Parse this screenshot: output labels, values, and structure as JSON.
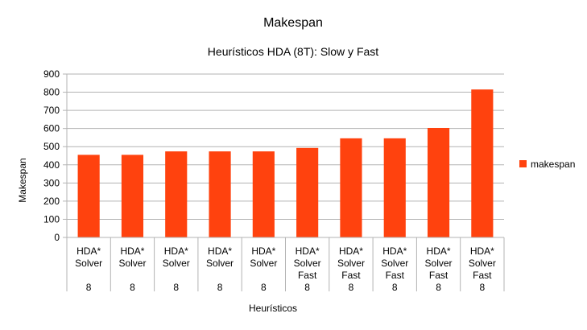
{
  "chart_data": {
    "type": "bar",
    "title": "Makespan",
    "subtitle": "Heurísticos HDA (8T): Slow y Fast",
    "xlabel": "Heurísticos",
    "ylabel": "Makespan",
    "ylim": [
      0,
      900
    ],
    "y_ticks": [
      "0",
      "100",
      "200",
      "300",
      "400",
      "500",
      "600",
      "700",
      "800",
      "900"
    ],
    "grid": true,
    "legend_position": "right",
    "categories": [
      {
        "lines": [
          "HDA*",
          "Solver",
          "",
          "8"
        ]
      },
      {
        "lines": [
          "HDA*",
          "Solver",
          "",
          "8"
        ]
      },
      {
        "lines": [
          "HDA*",
          "Solver",
          "",
          "8"
        ]
      },
      {
        "lines": [
          "HDA*",
          "Solver",
          "",
          "8"
        ]
      },
      {
        "lines": [
          "HDA*",
          "Solver",
          "",
          "8"
        ]
      },
      {
        "lines": [
          "HDA*",
          "Solver",
          "Fast",
          "8"
        ]
      },
      {
        "lines": [
          "HDA*",
          "Solver",
          "Fast",
          "8"
        ]
      },
      {
        "lines": [
          "HDA*",
          "Solver",
          "Fast",
          "8"
        ]
      },
      {
        "lines": [
          "HDA*",
          "Solver",
          "Fast",
          "8"
        ]
      },
      {
        "lines": [
          "HDA*",
          "Solver",
          "Fast",
          "8"
        ]
      }
    ],
    "series": [
      {
        "name": "makespan",
        "color": "#ff420e",
        "values": [
          455,
          455,
          474,
          474,
          474,
          493,
          546,
          546,
          603,
          815
        ]
      }
    ]
  }
}
